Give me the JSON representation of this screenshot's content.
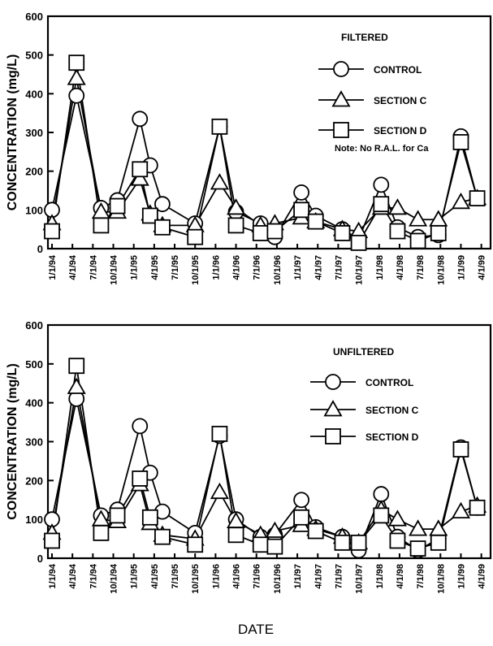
{
  "chart_data": [
    {
      "type": "line",
      "title": "FILTERED",
      "note": "Note: No R.A.L. for Ca",
      "ylabel": "CONCENTRATION (mg/L)",
      "xlabel": "",
      "ylim": [
        0,
        600
      ],
      "yticks": [
        "0",
        "100",
        "200",
        "300",
        "400",
        "500",
        "600"
      ],
      "xticks": [
        "1/1/94",
        "4/1/94",
        "7/1/94",
        "10/1/94",
        "1/1/95",
        "4/1/95",
        "7/1/95",
        "10/1/95",
        "1/1/96",
        "4/1/96",
        "7/1/96",
        "10/1/96",
        "1/1/97",
        "4/1/97",
        "7/1/97",
        "10/1/97",
        "1/1/98",
        "4/1/98",
        "7/1/98",
        "10/1/98",
        "1/1/99",
        "4/1/99"
      ],
      "legend_position": "top-right",
      "series": [
        {
          "name": "CONTROL",
          "marker": "circle",
          "x": [
            0,
            1.2,
            2.4,
            3.2,
            4.3,
            4.8,
            5.4,
            7.0,
            8.2,
            9.0,
            10.2,
            10.9,
            12.2,
            12.9,
            14.2,
            15.0,
            16.1,
            16.9,
            17.9,
            18.9,
            20.0,
            20.8
          ],
          "y": [
            100,
            395,
            105,
            125,
            335,
            215,
            115,
            65,
            315,
            95,
            65,
            30,
            145,
            85,
            50,
            25,
            165,
            55,
            30,
            35,
            290,
            130
          ]
        },
        {
          "name": "SECTION C",
          "marker": "triangle",
          "x": [
            0,
            1.2,
            2.4,
            3.2,
            4.3,
            4.8,
            5.4,
            7.0,
            8.2,
            9.0,
            10.2,
            10.9,
            12.2,
            12.9,
            14.2,
            15.0,
            16.1,
            16.9,
            17.9,
            18.9,
            20.0,
            20.8
          ],
          "y": [
            65,
            440,
            95,
            95,
            180,
            90,
            60,
            60,
            170,
            105,
            60,
            65,
            80,
            70,
            50,
            45,
            105,
            105,
            75,
            75,
            120,
            130
          ]
        },
        {
          "name": "SECTION D",
          "marker": "square",
          "x": [
            0,
            1.2,
            2.4,
            3.2,
            4.3,
            4.8,
            5.4,
            7.0,
            8.2,
            9.0,
            10.2,
            10.9,
            12.2,
            12.9,
            14.2,
            15.0,
            16.1,
            16.9,
            17.9,
            18.9,
            20.0,
            20.8
          ],
          "y": [
            45,
            480,
            60,
            110,
            205,
            85,
            55,
            30,
            315,
            60,
            40,
            45,
            100,
            70,
            40,
            15,
            115,
            45,
            20,
            40,
            275,
            130
          ]
        }
      ]
    },
    {
      "type": "line",
      "title": "UNFILTERED",
      "ylabel": "CONCENTRATION (mg/L)",
      "xlabel": "DATE",
      "ylim": [
        0,
        600
      ],
      "yticks": [
        "0",
        "100",
        "200",
        "300",
        "400",
        "500",
        "600"
      ],
      "xticks": [
        "1/1/94",
        "4/1/94",
        "7/1/94",
        "10/1/94",
        "1/1/95",
        "4/1/95",
        "7/1/95",
        "10/1/95",
        "1/1/96",
        "4/1/96",
        "7/1/96",
        "10/1/96",
        "1/1/97",
        "4/1/97",
        "7/1/97",
        "10/1/97",
        "1/1/98",
        "4/1/98",
        "7/1/98",
        "10/1/98",
        "1/1/99",
        "4/1/99"
      ],
      "legend_position": "top-right",
      "series": [
        {
          "name": "CONTROL",
          "marker": "circle",
          "x": [
            0,
            1.2,
            2.4,
            3.2,
            4.3,
            4.8,
            5.4,
            7.0,
            8.2,
            9.0,
            10.2,
            10.9,
            12.2,
            12.9,
            14.2,
            15.0,
            16.1,
            16.9,
            17.9,
            18.9,
            20.0,
            20.8
          ],
          "y": [
            100,
            410,
            110,
            125,
            340,
            220,
            120,
            65,
            315,
            100,
            55,
            60,
            150,
            80,
            55,
            20,
            165,
            55,
            20,
            50,
            285,
            130
          ]
        },
        {
          "name": "SECTION C",
          "marker": "triangle",
          "x": [
            0,
            1.2,
            2.4,
            3.2,
            4.3,
            4.8,
            5.4,
            7.0,
            8.2,
            9.0,
            10.2,
            10.9,
            12.2,
            12.9,
            14.2,
            15.0,
            16.1,
            16.9,
            17.9,
            18.9,
            20.0,
            20.8
          ],
          "y": [
            65,
            440,
            100,
            95,
            190,
            90,
            60,
            50,
            170,
            95,
            60,
            70,
            85,
            75,
            55,
            40,
            125,
            100,
            75,
            75,
            120,
            135
          ]
        },
        {
          "name": "SECTION D",
          "marker": "square",
          "x": [
            0,
            1.2,
            2.4,
            3.2,
            4.3,
            4.8,
            5.4,
            7.0,
            8.2,
            9.0,
            10.2,
            10.9,
            12.2,
            12.9,
            14.2,
            15.0,
            16.1,
            16.9,
            17.9,
            18.9,
            20.0,
            20.8
          ],
          "y": [
            45,
            495,
            65,
            110,
            205,
            105,
            55,
            35,
            320,
            60,
            35,
            30,
            105,
            70,
            40,
            40,
            110,
            45,
            25,
            40,
            280,
            130
          ]
        }
      ]
    }
  ]
}
